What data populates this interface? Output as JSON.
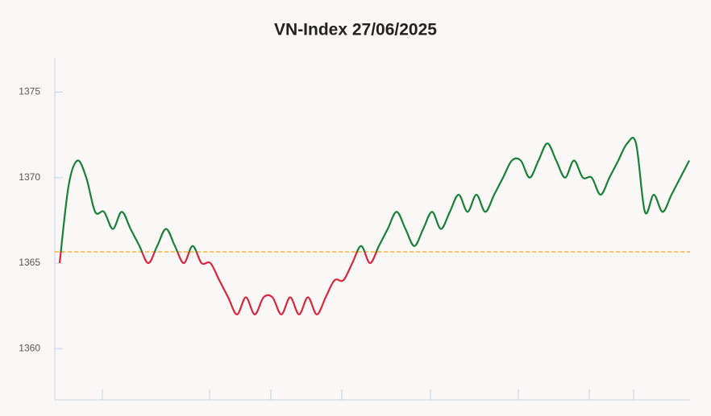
{
  "chart_data": {
    "type": "line",
    "title": "VN-Index 27/06/2025",
    "values": [
      1365,
      1369.5,
      1371,
      1370,
      1368,
      1368,
      1367,
      1368,
      1367,
      1366,
      1365,
      1366,
      1367,
      1366,
      1365,
      1366,
      1365,
      1365,
      1364,
      1363,
      1362,
      1363,
      1362,
      1363,
      1363,
      1362,
      1363,
      1362,
      1363,
      1362,
      1363,
      1364,
      1364,
      1365,
      1366,
      1365,
      1366,
      1367,
      1368,
      1367,
      1366,
      1367,
      1368,
      1367,
      1368,
      1369,
      1368,
      1369,
      1368,
      1369,
      1370,
      1371,
      1371,
      1370,
      1371,
      1372,
      1371,
      1370,
      1371,
      1370,
      1370,
      1369,
      1370,
      1371,
      1372,
      1372,
      1368,
      1369,
      1368,
      1369,
      1370,
      1371
    ],
    "reference": 1365.66,
    "reference_color": "#f5a623",
    "up_color": "#1a7f37",
    "down_color": "#d7263d",
    "ylim": [
      1357,
      1377
    ],
    "yticks": [
      1360,
      1365,
      1370,
      1375
    ],
    "grid": false
  }
}
